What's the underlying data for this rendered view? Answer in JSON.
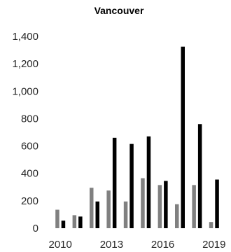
{
  "chart_data": {
    "type": "bar",
    "title": "Vancouver",
    "xlabel": "",
    "ylabel": "",
    "x": [
      2010,
      2011,
      2012,
      2013,
      2014,
      2015,
      2016,
      2017,
      2018,
      2019
    ],
    "x_tick_labels": [
      "2010",
      "2013",
      "2016",
      "2019"
    ],
    "x_tick_values": [
      2010,
      2013,
      2016,
      2019
    ],
    "ylim": [
      0,
      1400
    ],
    "y_ticks": [
      0,
      200,
      400,
      600,
      800,
      1000,
      1200,
      1400
    ],
    "y_tick_labels": [
      "0",
      "200",
      "400",
      "600",
      "800",
      "1,000",
      "1,200",
      "1,400"
    ],
    "grid": false,
    "legend": "none",
    "series": [
      {
        "color": "#808080",
        "values": [
          135,
          95,
          295,
          275,
          195,
          365,
          315,
          175,
          315,
          45
        ]
      },
      {
        "color": "#000000",
        "values": [
          55,
          85,
          195,
          660,
          615,
          670,
          345,
          1325,
          760,
          355
        ]
      }
    ]
  }
}
